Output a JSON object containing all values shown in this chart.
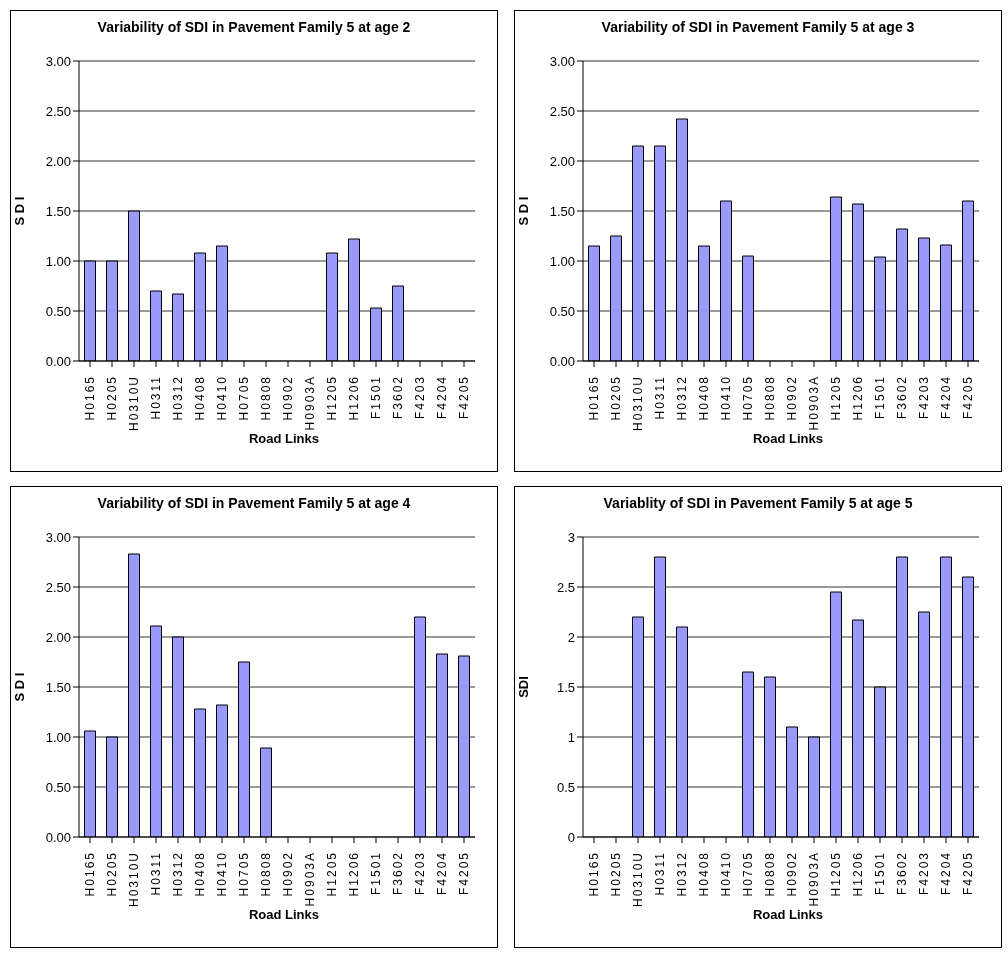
{
  "chart_data": [
    {
      "type": "bar",
      "title": "Variability of SDI in Pavement Family 5 at age 2",
      "xlabel": "Road Links",
      "ylabel": "S D I",
      "categories": [
        "H0165",
        "H0205",
        "H0310U",
        "H0311",
        "H0312",
        "H0408",
        "H0410",
        "H0705",
        "H0808",
        "H0902",
        "H0903A",
        "H1205",
        "H1206",
        "F1501",
        "F3602",
        "F4203",
        "F4204",
        "F4205"
      ],
      "color": "#9999ff",
      "values": [
        1.0,
        1.0,
        1.5,
        0.7,
        0.67,
        1.08,
        1.15,
        null,
        null,
        null,
        null,
        1.08,
        1.22,
        0.53,
        0.75,
        null,
        null,
        null
      ],
      "ylim": [
        0,
        3
      ],
      "yticks": [
        {
          "value": 0,
          "label": "0.00"
        },
        {
          "value": 0.5,
          "label": "0.50"
        },
        {
          "value": 1,
          "label": "1.00"
        },
        {
          "value": 1.5,
          "label": "1.50"
        },
        {
          "value": 2,
          "label": "2.00"
        },
        {
          "value": 2.5,
          "label": "2.50"
        },
        {
          "value": 3,
          "label": "3.00"
        }
      ],
      "grid": "y",
      "legend": false
    },
    {
      "type": "bar",
      "title": "Variability of SDI in Pavement Family 5 at age 3",
      "xlabel": "Road Links",
      "ylabel": "S D I",
      "categories": [
        "H0165",
        "H0205",
        "H0310U",
        "H0311",
        "H0312",
        "H0408",
        "H0410",
        "H0705",
        "H0808",
        "H0902",
        "H0903A",
        "H1205",
        "H1206",
        "F1501",
        "F3602",
        "F4203",
        "F4204",
        "F4205"
      ],
      "color": "#9999ff",
      "values": [
        1.15,
        1.25,
        2.15,
        2.15,
        2.42,
        1.15,
        1.6,
        1.05,
        null,
        null,
        null,
        1.64,
        1.57,
        1.04,
        1.32,
        1.23,
        1.16,
        1.6
      ],
      "ylim": [
        0,
        3
      ],
      "yticks": [
        {
          "value": 0,
          "label": "0.00"
        },
        {
          "value": 0.5,
          "label": "0.50"
        },
        {
          "value": 1,
          "label": "1.00"
        },
        {
          "value": 1.5,
          "label": "1.50"
        },
        {
          "value": 2,
          "label": "2.00"
        },
        {
          "value": 2.5,
          "label": "2.50"
        },
        {
          "value": 3,
          "label": "3.00"
        }
      ],
      "grid": "y",
      "legend": false
    },
    {
      "type": "bar",
      "title": "Variability of SDI in Pavement Family 5 at age 4",
      "xlabel": "Road Links",
      "ylabel": "S D I",
      "categories": [
        "H0165",
        "H0205",
        "H0310U",
        "H0311",
        "H0312",
        "H0408",
        "H0410",
        "H0705",
        "H0808",
        "H0902",
        "H0903A",
        "H1205",
        "H1206",
        "F1501",
        "F3602",
        "F4203",
        "F4204",
        "F4205"
      ],
      "color": "#9999ff",
      "values": [
        1.06,
        1.0,
        2.83,
        2.11,
        2.0,
        1.28,
        1.32,
        1.75,
        0.89,
        null,
        null,
        null,
        null,
        null,
        null,
        2.2,
        1.83,
        1.81
      ],
      "ylim": [
        0,
        3
      ],
      "yticks": [
        {
          "value": 0,
          "label": "0.00"
        },
        {
          "value": 0.5,
          "label": "0.50"
        },
        {
          "value": 1,
          "label": "1.00"
        },
        {
          "value": 1.5,
          "label": "1.50"
        },
        {
          "value": 2,
          "label": "2.00"
        },
        {
          "value": 2.5,
          "label": "2.50"
        },
        {
          "value": 3,
          "label": "3.00"
        }
      ],
      "grid": "y",
      "legend": false
    },
    {
      "type": "bar",
      "title": "Variablity of SDI in Pavement Family 5 at age 5",
      "xlabel": "Road Links",
      "ylabel": "SDI",
      "categories": [
        "H0165",
        "H0205",
        "H0310U",
        "H0311",
        "H0312",
        "H0408",
        "H0410",
        "H0705",
        "H0808",
        "H0902",
        "H0903A",
        "H1205",
        "H1206",
        "F1501",
        "F3602",
        "F4203",
        "F4204",
        "F4205"
      ],
      "color": "#9999ff",
      "values": [
        null,
        null,
        2.2,
        2.8,
        2.1,
        null,
        null,
        1.65,
        1.6,
        1.1,
        1.0,
        2.45,
        2.17,
        1.5,
        2.8,
        2.25,
        2.8,
        2.6
      ],
      "ylim": [
        0,
        3
      ],
      "yticks": [
        0,
        0.5,
        1,
        1.5,
        2,
        2.5,
        3
      ],
      "grid": "y",
      "legend": false
    }
  ]
}
